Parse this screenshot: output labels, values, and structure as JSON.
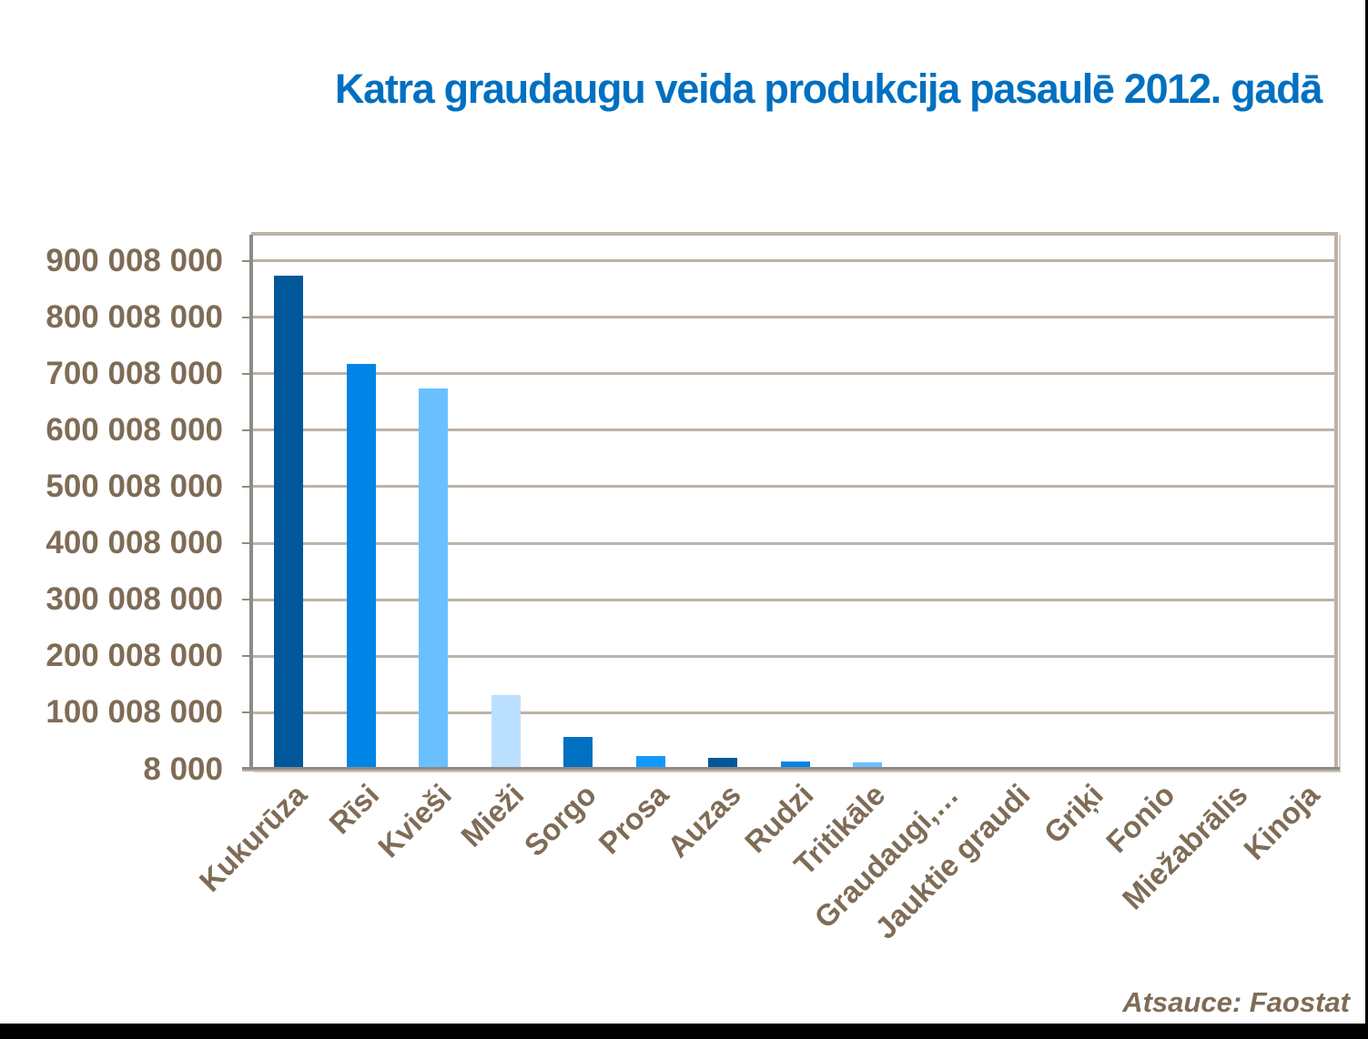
{
  "title": "Katra graudaugu veida produkcija pasaulē 2012. gadā",
  "source": "Atsauce: Faostat",
  "colors": {
    "title": "#0070c0",
    "axis_text": "#7f6c56",
    "gridline": "#bcb2a8",
    "axis_line": "#8e8a86",
    "bar_palette": [
      "#00589b",
      "#0084e6",
      "#6ac0ff",
      "#bbe0ff",
      "#0070c0",
      "#1199ff"
    ]
  },
  "y_axis": {
    "ticks": [
      {
        "label": "900 008 000",
        "value": 900008000
      },
      {
        "label": "800 008 000",
        "value": 800008000
      },
      {
        "label": "700 008 000",
        "value": 700008000
      },
      {
        "label": "600 008 000",
        "value": 600008000
      },
      {
        "label": "500 008 000",
        "value": 500008000
      },
      {
        "label": "400 008 000",
        "value": 400008000
      },
      {
        "label": "300 008 000",
        "value": 300008000
      },
      {
        "label": "200 008 000",
        "value": 200008000
      },
      {
        "label": "100 008 000",
        "value": 100008000
      },
      {
        "label": "8 000",
        "value": 8000
      }
    ]
  },
  "chart_data": {
    "type": "bar",
    "title": "Katra graudaugu veida produkcija pasaulē 2012. gadā",
    "xlabel": "",
    "ylabel": "",
    "categories": [
      "Kukurūza",
      "Rīsi",
      "Kvieši",
      "Mieži",
      "Sorgo",
      "Prosa",
      "Auzas",
      "Rudzi",
      "Tritikāle",
      "Graudaugi,…",
      "Jauktie graudi",
      "Griķi",
      "Fonio",
      "Miežabrālis",
      "Kinoja"
    ],
    "values": [
      874000000,
      718000000,
      674000000,
      131000000,
      57000000,
      23000000,
      20000000,
      14000000,
      12500000,
      4000000,
      3000000,
      2300000,
      600000,
      200000,
      80000
    ],
    "bar_colors": [
      "#00589b",
      "#0084e6",
      "#6ac0ff",
      "#bbe0ff",
      "#0070c0",
      "#1199ff",
      "#00589b",
      "#0084e6",
      "#6ac0ff",
      "#bbe0ff",
      "#4a79b8",
      "#0070c0",
      "#1199ff",
      "#00589b",
      "#0084e6"
    ],
    "ylim": [
      8000,
      950008000
    ],
    "yticks": [
      8000,
      100008000,
      200008000,
      300008000,
      400008000,
      500008000,
      600008000,
      700008000,
      800008000,
      900008000
    ],
    "grid": true,
    "legend": null,
    "source_note": "Atsauce: Faostat"
  }
}
